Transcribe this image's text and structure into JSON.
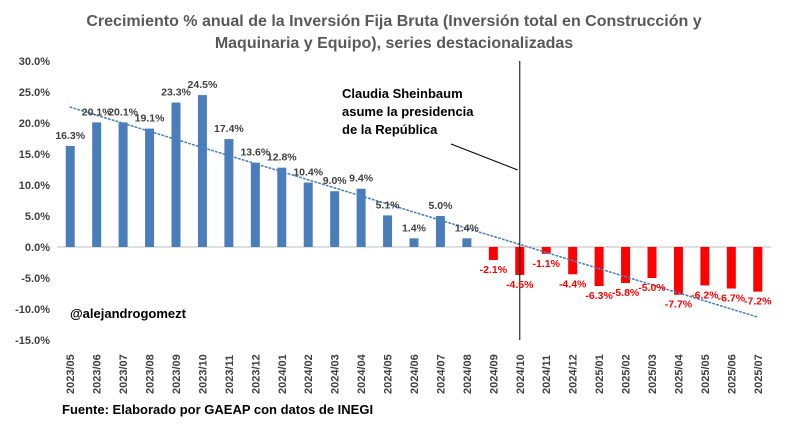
{
  "chart_data": {
    "type": "bar",
    "title_lines": [
      "Crecimiento % anual de la Inversión Fija Bruta (Inversión total en Construcción y",
      "Maquinaria y Equipo), series destacionalizadas"
    ],
    "categories": [
      "2023/05",
      "2023/06",
      "2023/07",
      "2023/08",
      "2023/09",
      "2023/10",
      "2023/11",
      "2023/12",
      "2024/01",
      "2024/02",
      "2024/03",
      "2024/04",
      "2024/05",
      "2024/06",
      "2024/07",
      "2024/08",
      "2024/09",
      "2024/10",
      "2024/11",
      "2024/12",
      "2025/01",
      "2025/02",
      "2025/03",
      "2025/04",
      "2025/05",
      "2025/06",
      "2025/07"
    ],
    "values": [
      16.3,
      20.1,
      20.1,
      19.1,
      23.3,
      24.5,
      17.4,
      13.6,
      12.8,
      10.4,
      9.0,
      9.4,
      5.1,
      1.4,
      5.0,
      1.4,
      -2.1,
      -4.5,
      -1.1,
      -4.4,
      -6.3,
      -5.8,
      -5.0,
      -7.7,
      -6.2,
      -6.7,
      -7.2
    ],
    "data_labels": [
      "16.3%",
      "20.1%",
      "20.1%",
      "19.1%",
      "23.3%",
      "24.5%",
      "17.4%",
      "13.6%",
      "12.8%",
      "10.4%",
      "9.0%",
      "9.4%",
      "5.1%",
      "1.4%",
      "5.0%",
      "1.4%",
      "-2.1%",
      "-4.5%",
      "-1.1%",
      "-4.4%",
      "-6.3%",
      "-5.8%",
      "-5.0%",
      "-7.7%",
      "-6.2%",
      "-6.7%",
      "-7.2%"
    ],
    "y_ticks": [
      30,
      25,
      20,
      15,
      10,
      5,
      0,
      -5,
      -10,
      -15
    ],
    "y_tick_labels": [
      "30.0%",
      "25.0%",
      "20.0%",
      "15.0%",
      "10.0%",
      "5.0%",
      "0.0%",
      "-5.0%",
      "-10.0%",
      "-15.0%"
    ],
    "ylim": [
      -15,
      30
    ],
    "trendline": {
      "style": "dotted",
      "type": "linear"
    },
    "colors": {
      "positive": "#4a7ebb",
      "negative": "#ff0000",
      "trend": "#4f81bd",
      "axis": "#bfbfbf",
      "title": "#595959"
    },
    "annotation": {
      "lines": [
        "Claudia Sheinbaum",
        "asume la presidencia",
        "de la República"
      ],
      "marker_category": "2024/10"
    },
    "handle": "@alejandrogomezt",
    "source": "Fuente: Elaborado por GAEAP con datos de INEGI"
  }
}
